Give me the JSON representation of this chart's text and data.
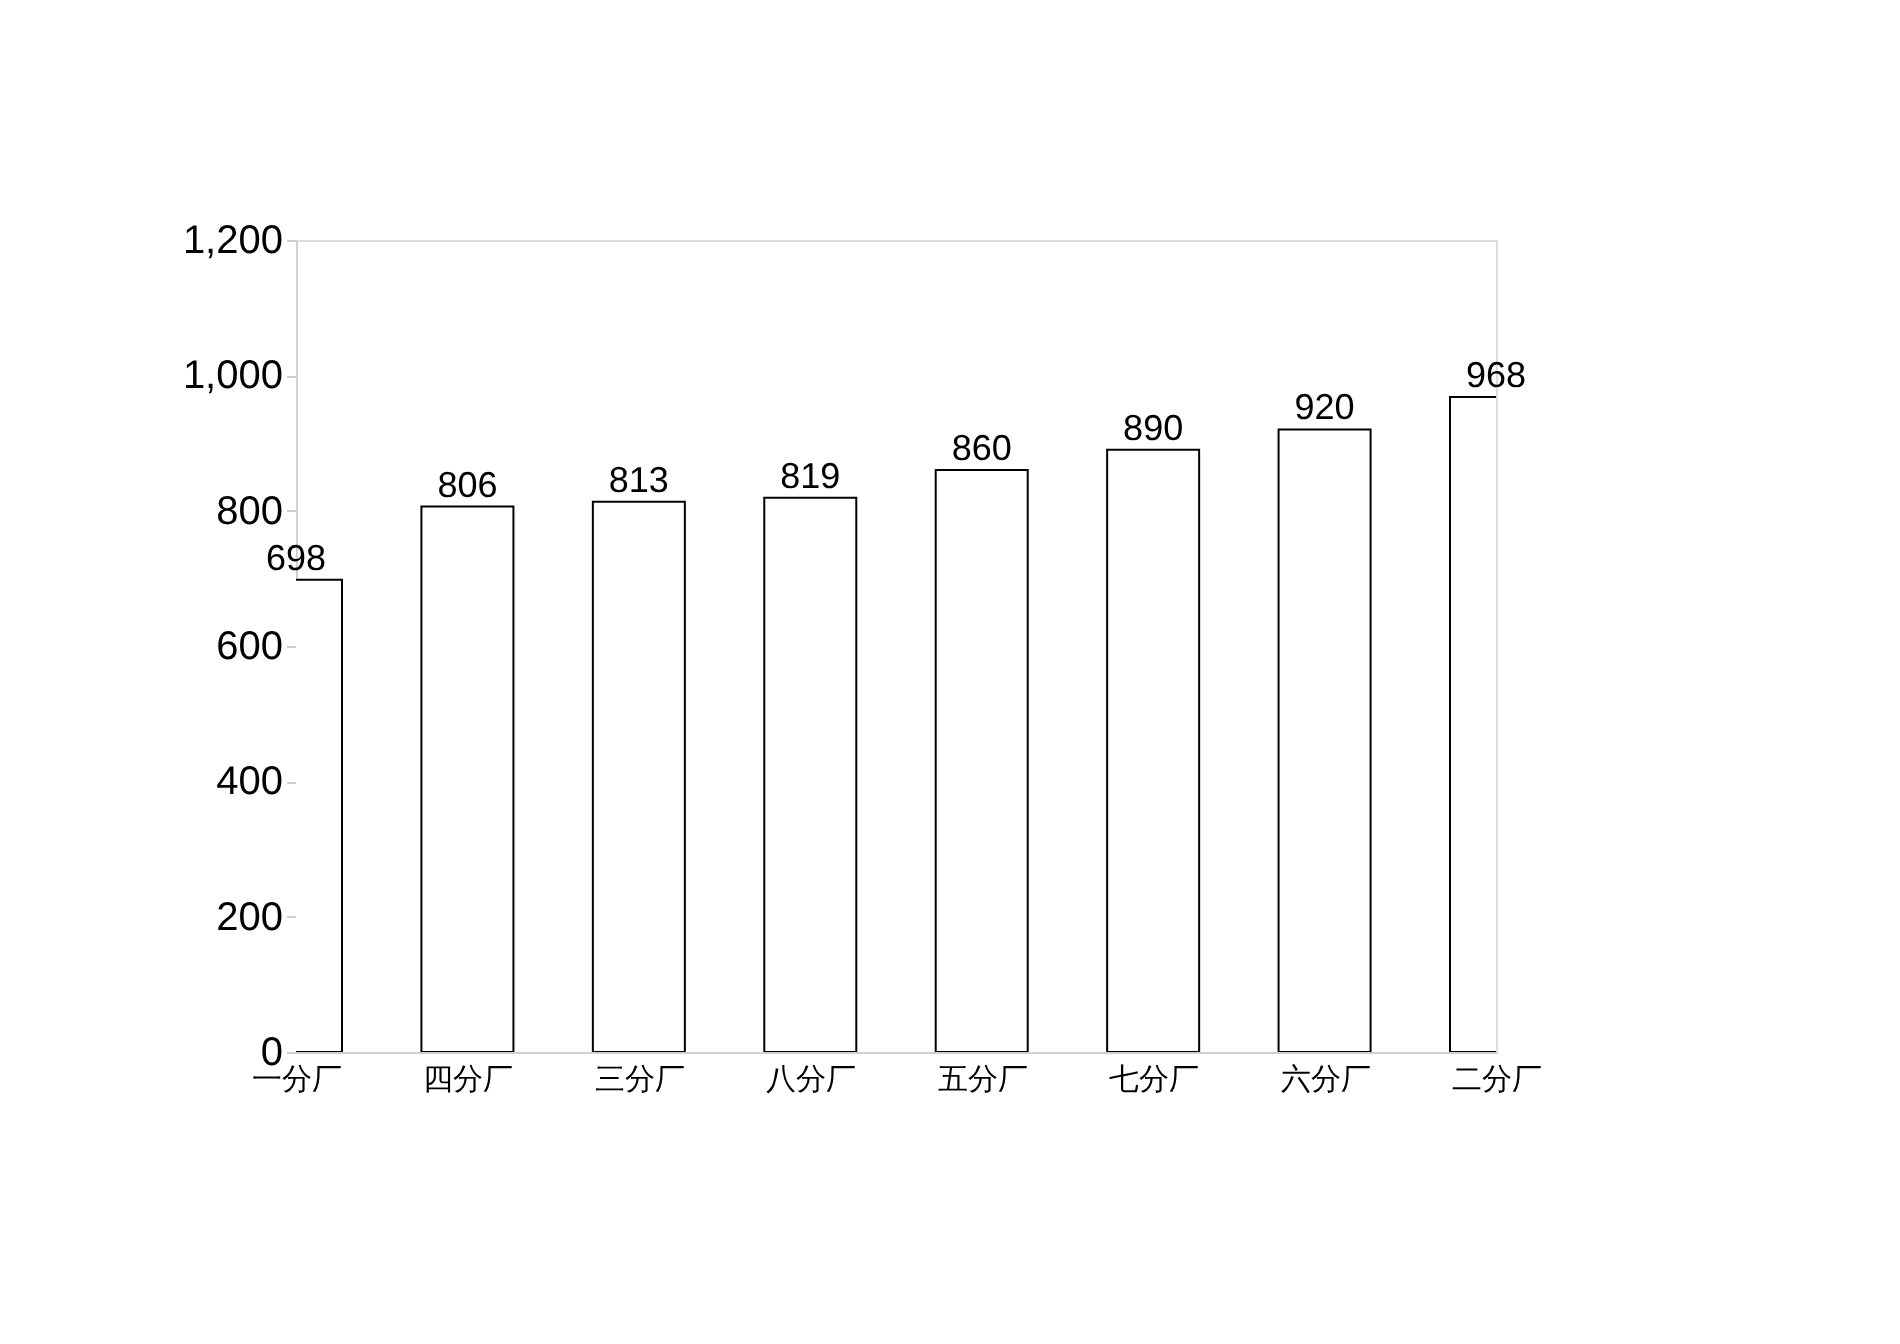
{
  "chart_data": {
    "type": "bar",
    "categories": [
      "一分厂",
      "四分厂",
      "三分厂",
      "八分厂",
      "五分厂",
      "七分厂",
      "六分厂",
      "二分厂"
    ],
    "values": [
      698,
      806,
      813,
      819,
      860,
      890,
      920,
      968
    ],
    "color": "#ffffff",
    "ylim": [
      0,
      1200
    ],
    "yticks": [
      0,
      200,
      400,
      600,
      800,
      {
        "value": 1000,
        "label": "1,000"
      },
      {
        "value": 1200,
        "label": "1,200"
      }
    ],
    "data_labels": true,
    "grid": false
  }
}
